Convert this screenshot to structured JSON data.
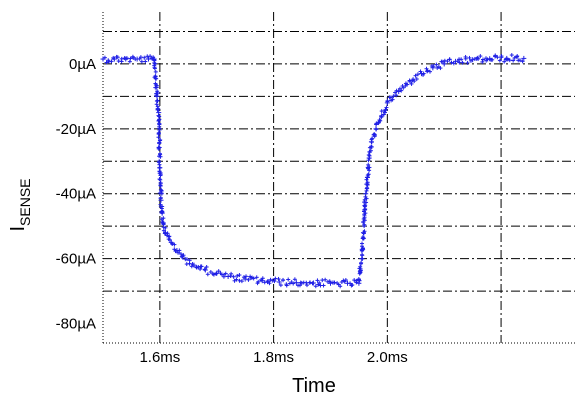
{
  "chart_data": {
    "type": "scatter",
    "title": "",
    "xlabel": "Time",
    "ylabel": "I",
    "ylabel_subscript": "SENSE",
    "xlim": [
      1.5,
      2.33
    ],
    "ylim": [
      -86,
      16
    ],
    "x_unit": "ms",
    "y_unit": "µA",
    "x_ticks": [
      {
        "value": 1.6,
        "label": "1.6ms"
      },
      {
        "value": 1.8,
        "label": "1.8ms"
      },
      {
        "value": 2.0,
        "label": "2.0ms"
      }
    ],
    "x_gridlines": [
      1.6,
      1.8,
      2.0,
      2.2
    ],
    "y_ticks": [
      {
        "value": 0,
        "label": "0µA"
      },
      {
        "value": -20,
        "label": "-20µA"
      },
      {
        "value": -40,
        "label": "-40µA"
      },
      {
        "value": -60,
        "label": "-60µA"
      },
      {
        "value": -80,
        "label": "-80µA"
      }
    ],
    "y_gridlines": [
      10,
      0,
      -10,
      -20,
      -30,
      -40,
      -50,
      -60,
      -70
    ],
    "grid": true,
    "marker": "plus",
    "series_color": "#1f1fe6",
    "series": [
      {
        "x": [
          1.5,
          1.52,
          1.54,
          1.56,
          1.58,
          1.59,
          1.595,
          1.598,
          1.6,
          1.602,
          1.604,
          1.606,
          1.61,
          1.62,
          1.63,
          1.64,
          1.66,
          1.68,
          1.7,
          1.72,
          1.75,
          1.78,
          1.81,
          1.84,
          1.87,
          1.9,
          1.93,
          1.95,
          1.955,
          1.958,
          1.96,
          1.962,
          1.965,
          1.968,
          1.972,
          1.98,
          1.99,
          2.0,
          2.02,
          2.04,
          2.06,
          2.08,
          2.1,
          2.12,
          2.15,
          2.18,
          2.21,
          2.24
        ],
        "y": [
          1.5,
          1.5,
          1.5,
          1.5,
          1.5,
          1.5,
          -10,
          -15,
          -32,
          -42,
          -46,
          -49,
          -52,
          -55,
          -57.5,
          -59.5,
          -62,
          -63.5,
          -64.5,
          -65.5,
          -66.3,
          -66.8,
          -67.2,
          -67.4,
          -67.5,
          -67.6,
          -67.6,
          -67.6,
          -60,
          -52,
          -45,
          -40,
          -35,
          -29,
          -24,
          -20,
          -16,
          -12,
          -8.5,
          -5.5,
          -3,
          -1.2,
          0,
          0.8,
          1.3,
          1.6,
          1.7,
          1.7
        ]
      }
    ]
  }
}
